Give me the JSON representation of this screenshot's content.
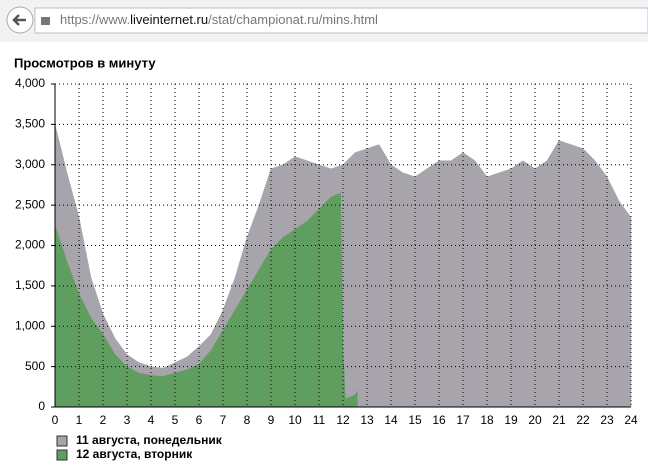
{
  "browser": {
    "url_parts": [
      "https://www.",
      "liveinternet.ru",
      "/stat/championat.ru/mins.html"
    ]
  },
  "chart_data": {
    "type": "area",
    "title": "Просмотров в минуту",
    "xlim": [
      0,
      24
    ],
    "xticks": [
      0,
      1,
      2,
      3,
      4,
      5,
      6,
      7,
      8,
      9,
      10,
      11,
      12,
      13,
      14,
      15,
      16,
      17,
      18,
      19,
      20,
      21,
      22,
      23,
      24
    ],
    "ylim": [
      0,
      4000
    ],
    "yticks": [
      0,
      500,
      {
        "value": 1000,
        "label": "1,000"
      },
      {
        "value": 1500,
        "label": "1,500"
      },
      {
        "value": 2000,
        "label": "2,000"
      },
      {
        "value": 2500,
        "label": "2,500"
      },
      {
        "value": 3000,
        "label": "3,000"
      },
      {
        "value": 3500,
        "label": "3,500"
      },
      {
        "value": 4000,
        "label": "4,000"
      }
    ],
    "grid": true,
    "series": [
      {
        "name": "11 августа, понедельник",
        "color": "#a7a4ab",
        "x": [
          0,
          0.5,
          1,
          1.5,
          2,
          2.5,
          3,
          3.5,
          4,
          4.5,
          5,
          5.5,
          6,
          6.5,
          7,
          7.5,
          8,
          8.5,
          9,
          9.5,
          10,
          10.5,
          11,
          11.5,
          12,
          12.5,
          13,
          13.5,
          14,
          14.5,
          15,
          15.5,
          16,
          16.5,
          17,
          17.5,
          18,
          18.5,
          19,
          19.5,
          20,
          20.5,
          21,
          21.5,
          22,
          22.5,
          23,
          23.5,
          24
        ],
        "values": [
          3500,
          2900,
          2350,
          1600,
          1150,
          850,
          650,
          550,
          500,
          480,
          550,
          620,
          750,
          900,
          1200,
          1600,
          2100,
          2500,
          2950,
          3000,
          3100,
          3050,
          3000,
          2950,
          3000,
          3150,
          3200,
          3250,
          3000,
          2900,
          2850,
          2950,
          3050,
          3050,
          3150,
          3050,
          2850,
          2900,
          2950,
          3050,
          2950,
          3050,
          3300,
          3250,
          3200,
          3050,
          2850,
          2550,
          2350
        ]
      },
      {
        "name": "12 августа, вторник",
        "color": "#5f9e5f",
        "x": [
          0,
          0.5,
          1,
          1.5,
          2,
          2.5,
          3,
          3.5,
          4,
          4.5,
          5,
          5.5,
          6,
          6.5,
          7,
          7.5,
          8,
          8.5,
          9,
          9.5,
          10,
          10.5,
          11,
          11.5,
          11.9,
          12,
          12.1,
          12.5,
          12.6
        ],
        "values": [
          2250,
          1800,
          1400,
          1100,
          900,
          650,
          500,
          420,
          390,
          380,
          420,
          460,
          530,
          700,
          950,
          1200,
          1450,
          1700,
          1950,
          2100,
          2200,
          2300,
          2450,
          2600,
          2650,
          700,
          100,
          150,
          200
        ]
      }
    ]
  }
}
